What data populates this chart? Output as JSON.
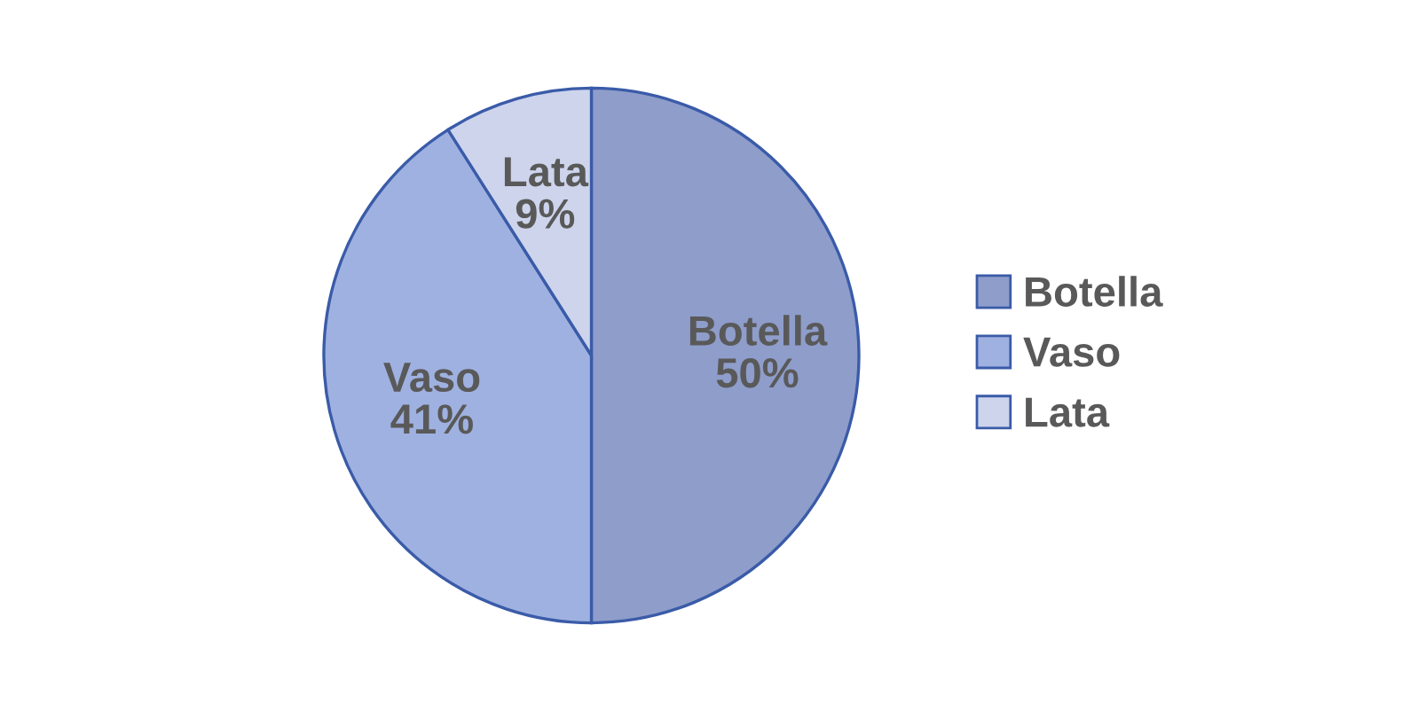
{
  "chart_data": {
    "type": "pie",
    "categories": [
      "Botella",
      "Vaso",
      "Lata"
    ],
    "values": [
      50,
      41,
      9
    ],
    "colors": [
      "#8e9dca",
      "#9fb1e0",
      "#cdd4ec"
    ],
    "value_labels": [
      "Botella\n50%",
      "Vaso\n41%",
      "Lata\n9%"
    ],
    "legend": "right"
  }
}
